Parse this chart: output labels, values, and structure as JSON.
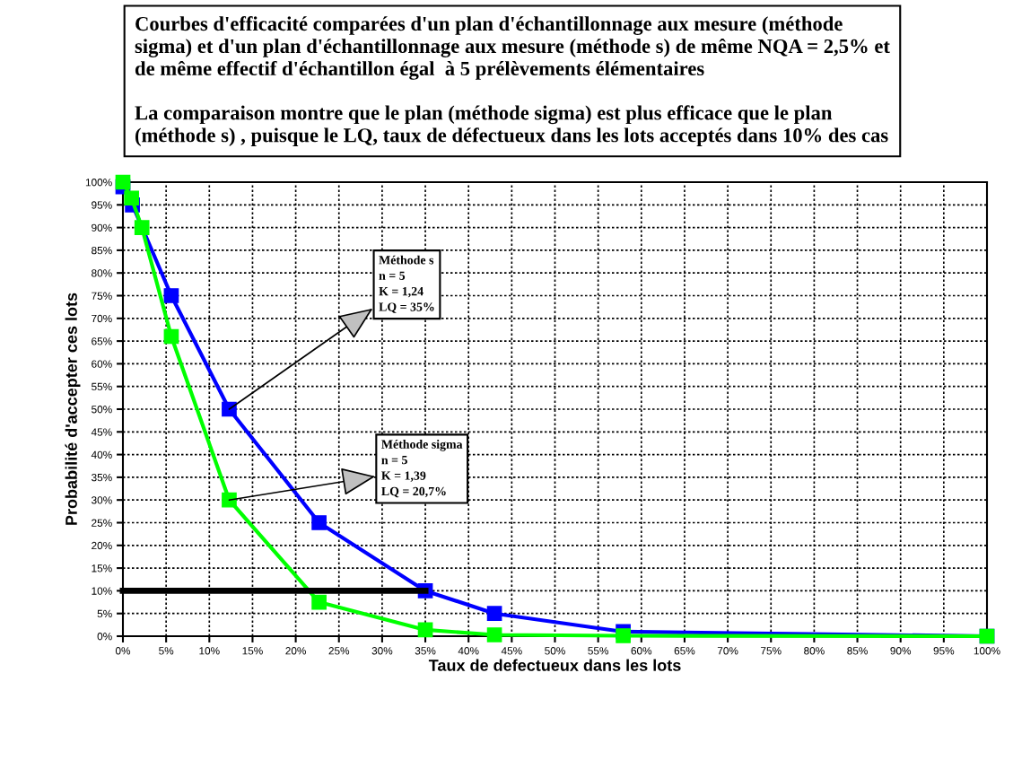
{
  "chart_data": {
    "type": "line",
    "title": "Courbes d'efficacité comparées d'un plan d'échantillonnage aux mesure (méthode\nsigma) et d'un plan d'échantillonnage aux mesure (méthode s) de même NQA = 2,5% et\nde même effectif d'échantillon égal  à 5 prélèvements élémentaires\n\nLa comparaison montre que le plan (méthode sigma) est plus efficace que le plan\n(méthode s) , puisque le LQ, taux de défectueux dans les lots acceptés dans 10% des cas",
    "xlabel": "Taux de defectueux dans les lots",
    "ylabel": "Probabilité d'accepter ces lots",
    "series": [
      {
        "color": "#0000ff",
        "x": [
          0,
          1.1,
          5.6,
          12.3,
          22.7,
          35,
          43,
          57.9,
          100
        ],
        "values": [
          99,
          95,
          75,
          50,
          25,
          10,
          5,
          1,
          0
        ]
      },
      {
        "color": "#00ff00",
        "x": [
          0,
          1.0,
          2.2,
          5.6,
          12.3,
          22.7,
          35,
          43,
          57.9,
          100
        ],
        "values": [
          100,
          96.5,
          90,
          66,
          30,
          7.5,
          1.4,
          0.3,
          0.1,
          0
        ]
      },
      {
        "color": "#000000",
        "x": [
          0,
          35
        ],
        "values": [
          10,
          10
        ],
        "marker": "none"
      }
    ],
    "annotations": [
      {
        "text": "Méthode s\nn = 5\nK = 1,24\nLQ = 35%",
        "x": 12.3,
        "y": 50
      },
      {
        "text": "Méthode sigma\nn = 5\nK = 1,39\nLQ = 20,7%",
        "x": 12.3,
        "y": 30
      }
    ],
    "xlim": [
      0,
      100
    ],
    "ylim": [
      0,
      100
    ],
    "xticks": [
      {
        "value": 0,
        "label": "0%"
      },
      {
        "value": 5,
        "label": "5%"
      },
      {
        "value": 10,
        "label": "10%"
      },
      {
        "value": 15,
        "label": "15%"
      },
      {
        "value": 20,
        "label": "20%"
      },
      {
        "value": 25,
        "label": "25%"
      },
      {
        "value": 30,
        "label": "30%"
      },
      {
        "value": 35,
        "label": "35%"
      },
      {
        "value": 40,
        "label": "40%"
      },
      {
        "value": 45,
        "label": "45%"
      },
      {
        "value": 50,
        "label": "50%"
      },
      {
        "value": 55,
        "label": "55%"
      },
      {
        "value": 60,
        "label": "60%"
      },
      {
        "value": 65,
        "label": "65%"
      },
      {
        "value": 70,
        "label": "70%"
      },
      {
        "value": 75,
        "label": "75%"
      },
      {
        "value": 80,
        "label": "80%"
      },
      {
        "value": 85,
        "label": "85%"
      },
      {
        "value": 90,
        "label": "90%"
      },
      {
        "value": 95,
        "label": "95%"
      },
      {
        "value": 100,
        "label": "100%"
      }
    ],
    "yticks": [
      {
        "value": 0,
        "label": "0%"
      },
      {
        "value": 5,
        "label": "5%"
      },
      {
        "value": 10,
        "label": "10%"
      },
      {
        "value": 15,
        "label": "15%"
      },
      {
        "value": 20,
        "label": "20%"
      },
      {
        "value": 25,
        "label": "25%"
      },
      {
        "value": 30,
        "label": "30%"
      },
      {
        "value": 35,
        "label": "35%"
      },
      {
        "value": 40,
        "label": "40%"
      },
      {
        "value": 45,
        "label": "45%"
      },
      {
        "value": 50,
        "label": "50%"
      },
      {
        "value": 55,
        "label": "55%"
      },
      {
        "value": 60,
        "label": "60%"
      },
      {
        "value": 65,
        "label": "65%"
      },
      {
        "value": 70,
        "label": "70%"
      },
      {
        "value": 75,
        "label": "75%"
      },
      {
        "value": 80,
        "label": "80%"
      },
      {
        "value": 85,
        "label": "85%"
      },
      {
        "value": 90,
        "label": "90%"
      },
      {
        "value": 95,
        "label": "95%"
      },
      {
        "value": 100,
        "label": "100%"
      }
    ],
    "grid": true,
    "legend": false,
    "marker": "square",
    "line_style": "solid"
  }
}
